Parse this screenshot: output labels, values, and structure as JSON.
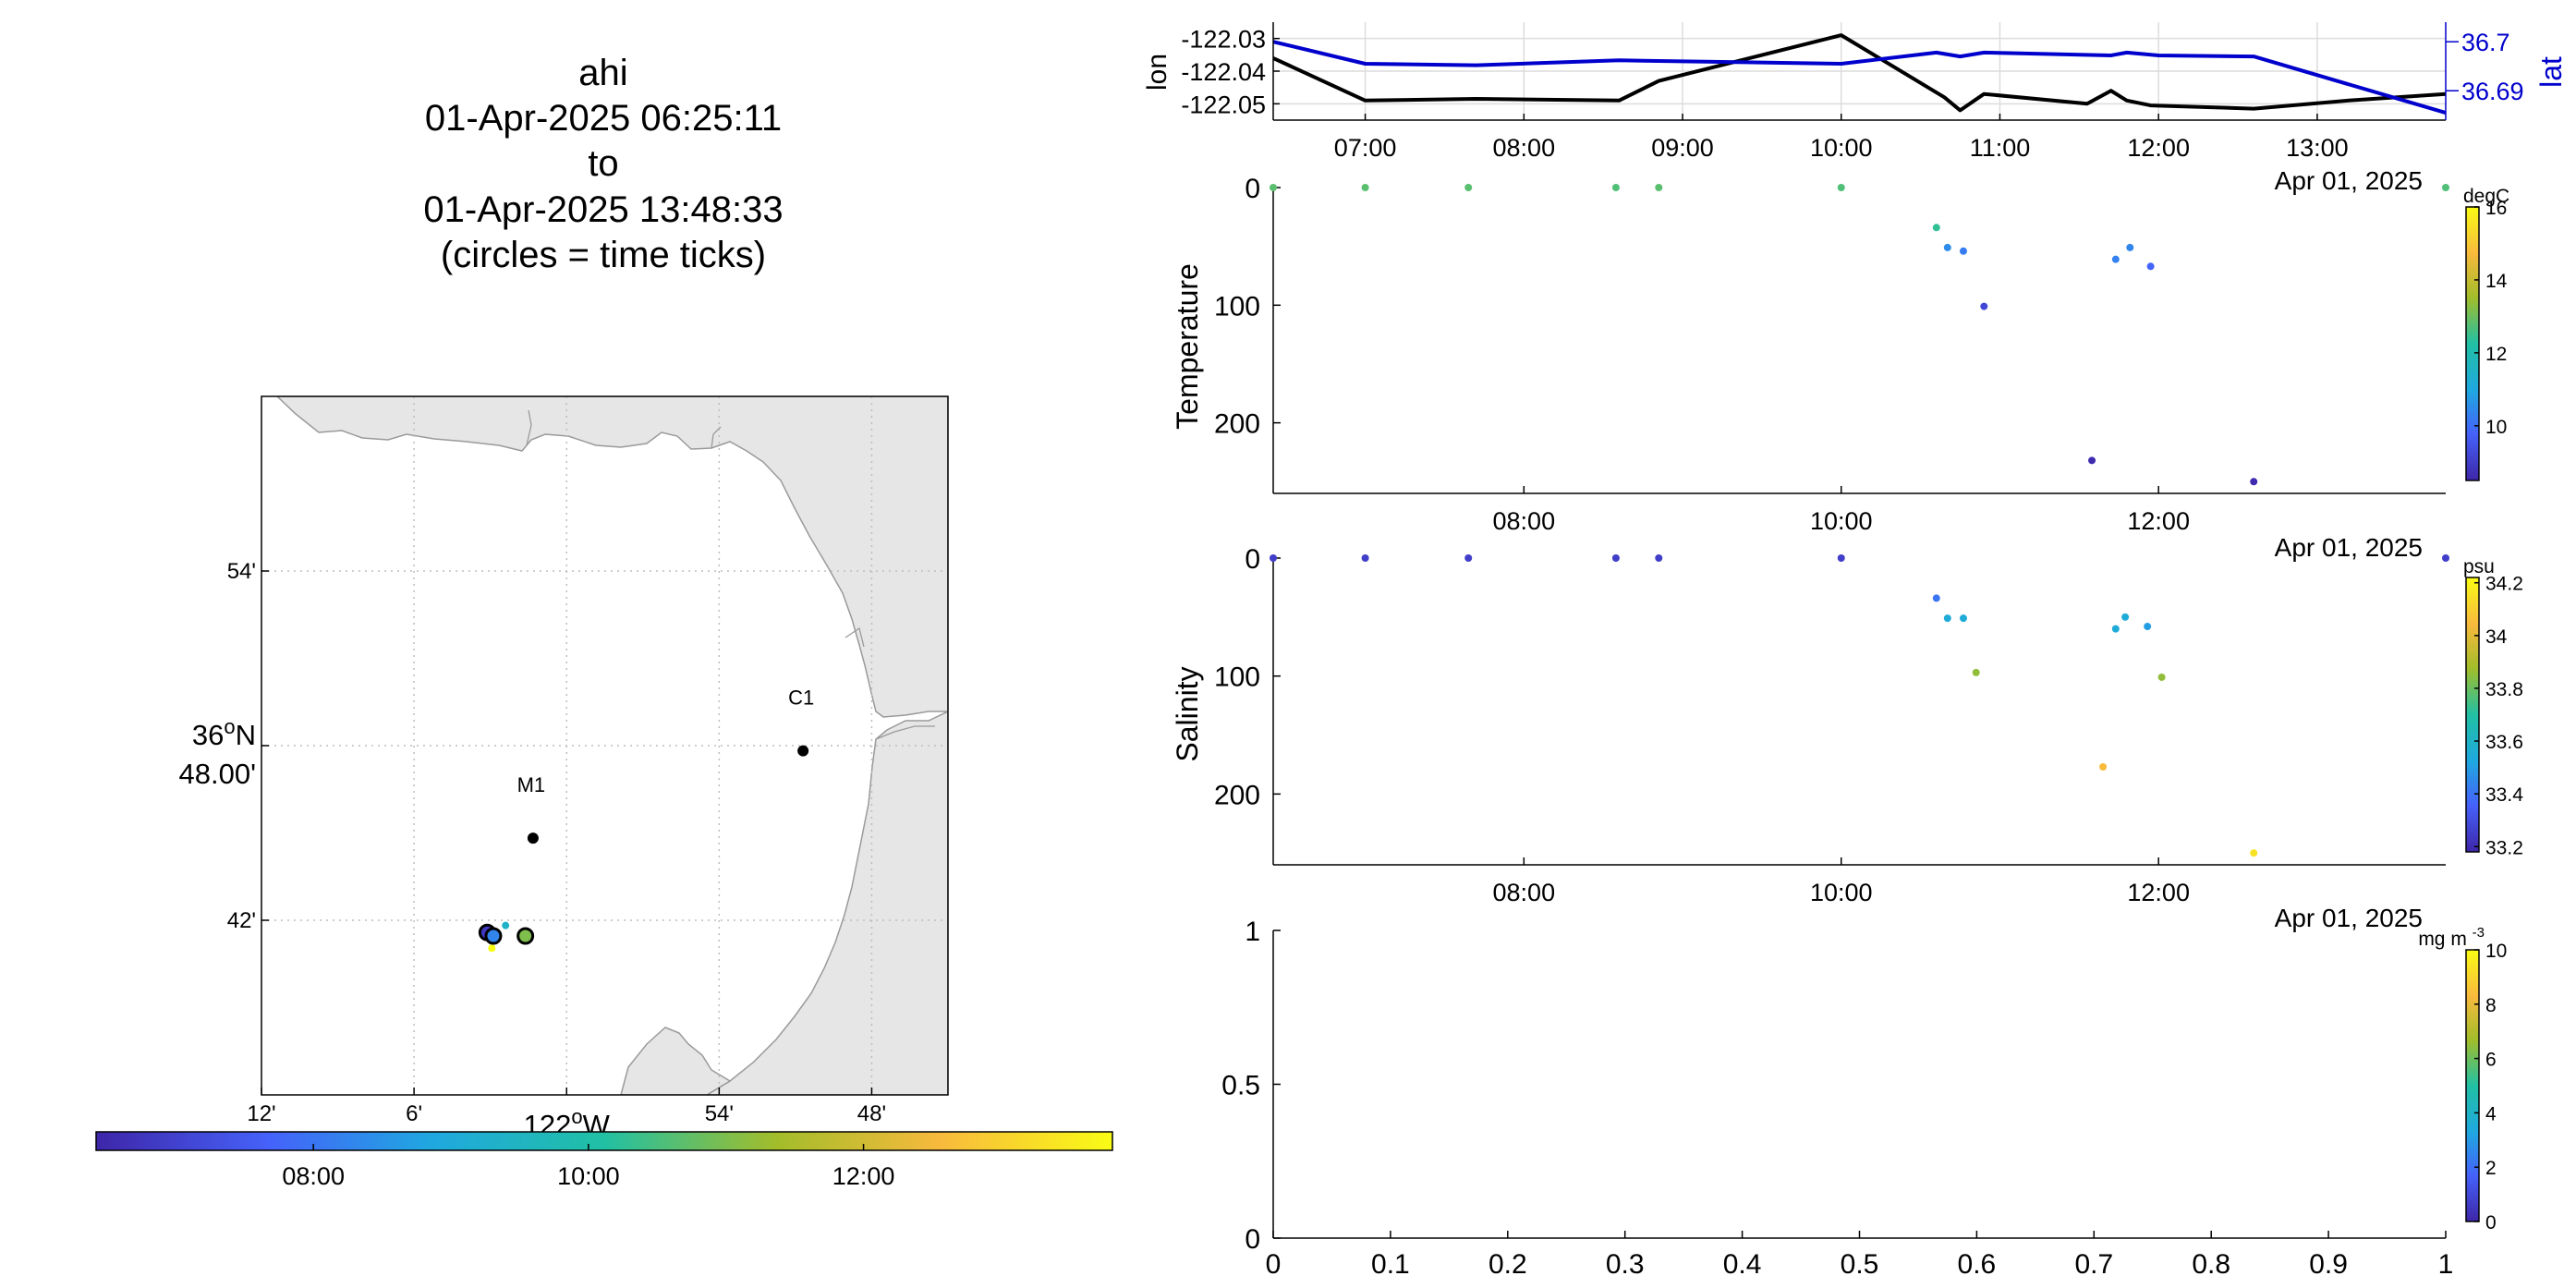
{
  "title": {
    "lines": [
      "ahi",
      "01-Apr-2025 06:25:11",
      "to",
      "01-Apr-2025 13:48:33",
      "(circles = time ticks)"
    ]
  },
  "map": {
    "lon_range": [
      -122.2,
      -121.75
    ],
    "lat_range": [
      36.6,
      37.0
    ],
    "x_tick_labels": [
      {
        "lon": -122.2,
        "label": "12'"
      },
      {
        "lon": -122.1,
        "label": "6'"
      },
      {
        "lon": -122.0,
        "label": "122",
        "suffix": "W"
      },
      {
        "lon": -121.9,
        "label": "54'"
      },
      {
        "lon": -121.8,
        "label": "48'"
      }
    ],
    "y_tick_labels": [
      {
        "lat": 36.9,
        "label": "54'"
      },
      {
        "lat": 36.8,
        "label": "36",
        "suffix": "N",
        "second_line": "48.00'"
      },
      {
        "lat": 36.7,
        "label": "42'"
      }
    ],
    "land_color": "#e6e6e6",
    "moorings": [
      {
        "name": "C1",
        "lon": -121.845,
        "lat": 36.797
      },
      {
        "name": "M1",
        "lon": -122.022,
        "lat": 36.747
      }
    ],
    "track_points": [
      {
        "lon": -122.052,
        "lat": 36.693,
        "t": 0.0
      },
      {
        "lon": -122.05,
        "lat": 36.691,
        "t": 0.15
      },
      {
        "lon": -122.049,
        "lat": 36.69,
        "t": 0.3
      },
      {
        "lon": -122.048,
        "lat": 36.692,
        "t": 0.45
      },
      {
        "lon": -122.04,
        "lat": 36.697,
        "t": 0.4
      },
      {
        "lon": -122.028,
        "lat": 36.692,
        "t": 0.55
      },
      {
        "lon": -122.026,
        "lat": 36.69,
        "t": 0.6
      },
      {
        "lon": -122.049,
        "lat": 36.684,
        "t": 1.0
      }
    ],
    "time_tick_circles": [
      {
        "lon": -122.052,
        "lat": 36.693,
        "t": 0.05
      },
      {
        "lon": -122.048,
        "lat": 36.691,
        "t": 0.25
      },
      {
        "lon": -122.027,
        "lat": 36.691,
        "t": 0.62
      }
    ]
  },
  "time_colorbar": {
    "colors": [
      "#3e26a8",
      "#4562fa",
      "#1fa8e0",
      "#21c0a4",
      "#a3bd2a",
      "#f8ba3d",
      "#f9fb15"
    ],
    "tick_labels": [
      {
        "hour": 8,
        "label": "08:00"
      },
      {
        "hour": 10,
        "label": "10:00"
      },
      {
        "hour": 12,
        "label": "12:00"
      }
    ],
    "time_range_hours": [
      6.42,
      13.81
    ]
  },
  "chart_data": [
    {
      "type": "line",
      "panel": "position",
      "ylabel": "lon",
      "ylabel_right": "lat",
      "x_range_hours": [
        6.42,
        13.81
      ],
      "x_tick_labels": [
        "07:00",
        "08:00",
        "09:00",
        "10:00",
        "11:00",
        "12:00",
        "13:00"
      ],
      "x_tick_hours": [
        7,
        8,
        9,
        10,
        11,
        12,
        13
      ],
      "date_label": "Apr 01, 2025",
      "y_left_range": [
        -122.055,
        -122.025
      ],
      "y_left_ticks": [
        "-122.03",
        "-122.04",
        "-122.05"
      ],
      "y_left_tick_values": [
        -122.03,
        -122.04,
        -122.05
      ],
      "y_right_range": [
        36.684,
        36.704
      ],
      "y_right_ticks": [
        "36.7",
        "36.69"
      ],
      "y_right_tick_values": [
        36.7,
        36.69
      ],
      "series": [
        {
          "name": "lon",
          "axis": "left",
          "color": "#000000",
          "x_hours": [
            6.42,
            7.0,
            7.7,
            8.6,
            8.85,
            10.0,
            10.65,
            10.75,
            10.9,
            11.55,
            11.7,
            11.8,
            11.95,
            12.6,
            13.2,
            13.81
          ],
          "y": [
            -122.036,
            -122.049,
            -122.0485,
            -122.049,
            -122.043,
            -122.029,
            -122.048,
            -122.052,
            -122.047,
            -122.05,
            -122.046,
            -122.049,
            -122.0505,
            -122.0515,
            -122.049,
            -122.047
          ]
        },
        {
          "name": "lat",
          "axis": "right",
          "color": "#0000cc",
          "x_hours": [
            6.42,
            7.0,
            7.7,
            8.6,
            10.0,
            10.6,
            10.75,
            10.9,
            11.7,
            11.8,
            12.0,
            12.6,
            13.81
          ],
          "y": [
            36.7,
            36.6955,
            36.6952,
            36.6962,
            36.6955,
            36.6978,
            36.697,
            36.6978,
            36.6972,
            36.6978,
            36.6972,
            36.697,
            36.6855
          ]
        }
      ]
    },
    {
      "type": "scatter",
      "panel": "temperature",
      "ylabel": "Temperature",
      "x_range_hours": [
        6.42,
        13.81
      ],
      "x_tick_labels": [
        "08:00",
        "10:00",
        "12:00"
      ],
      "x_tick_hours": [
        8,
        10,
        12
      ],
      "date_label": "Apr 01, 2025",
      "y_range": [
        0,
        260
      ],
      "y_reversed": true,
      "y_ticks": [
        0,
        100,
        200
      ],
      "colorbar": {
        "unit": "degC",
        "range": [
          8.5,
          16
        ],
        "ticks": [
          10,
          12,
          14,
          16
        ]
      },
      "points": [
        {
          "x": 6.42,
          "depth": 0,
          "value": 12.8
        },
        {
          "x": 7.0,
          "depth": 0,
          "value": 12.8
        },
        {
          "x": 7.65,
          "depth": 0,
          "value": 12.8
        },
        {
          "x": 8.58,
          "depth": 0,
          "value": 12.7
        },
        {
          "x": 8.85,
          "depth": 0,
          "value": 12.8
        },
        {
          "x": 10.0,
          "depth": 0,
          "value": 12.7
        },
        {
          "x": 10.6,
          "depth": 34,
          "value": 12.4
        },
        {
          "x": 10.67,
          "depth": 51,
          "value": 10.5
        },
        {
          "x": 10.77,
          "depth": 54,
          "value": 10.2
        },
        {
          "x": 10.9,
          "depth": 101,
          "value": 9.2
        },
        {
          "x": 11.58,
          "depth": 232,
          "value": 8.6
        },
        {
          "x": 11.73,
          "depth": 61,
          "value": 10.3
        },
        {
          "x": 11.82,
          "depth": 51,
          "value": 10.4
        },
        {
          "x": 11.95,
          "depth": 67,
          "value": 9.8
        },
        {
          "x": 12.6,
          "depth": 250,
          "value": 8.6
        },
        {
          "x": 13.81,
          "depth": 0,
          "value": 12.7
        }
      ]
    },
    {
      "type": "scatter",
      "panel": "salinity",
      "ylabel": "Salinity",
      "x_range_hours": [
        6.42,
        13.81
      ],
      "x_tick_labels": [
        "08:00",
        "10:00",
        "12:00"
      ],
      "x_tick_hours": [
        8,
        10,
        12
      ],
      "date_label": "Apr 01, 2025",
      "y_range": [
        0,
        260
      ],
      "y_reversed": true,
      "y_ticks": [
        0,
        100,
        200
      ],
      "colorbar": {
        "unit": "psu",
        "range": [
          33.18,
          34.22
        ],
        "ticks": [
          33.2,
          33.4,
          33.6,
          33.8,
          34,
          34.2
        ]
      },
      "points": [
        {
          "x": 6.42,
          "depth": 0,
          "value": 33.25
        },
        {
          "x": 7.0,
          "depth": 0,
          "value": 33.25
        },
        {
          "x": 7.65,
          "depth": 0,
          "value": 33.25
        },
        {
          "x": 8.58,
          "depth": 0,
          "value": 33.25
        },
        {
          "x": 8.85,
          "depth": 0,
          "value": 33.25
        },
        {
          "x": 10.0,
          "depth": 0,
          "value": 33.25
        },
        {
          "x": 10.6,
          "depth": 34,
          "value": 33.4
        },
        {
          "x": 10.67,
          "depth": 51,
          "value": 33.55
        },
        {
          "x": 10.77,
          "depth": 51,
          "value": 33.55
        },
        {
          "x": 10.85,
          "depth": 97,
          "value": 33.85
        },
        {
          "x": 11.65,
          "depth": 177,
          "value": 34.05
        },
        {
          "x": 11.73,
          "depth": 60,
          "value": 33.55
        },
        {
          "x": 11.79,
          "depth": 50,
          "value": 33.55
        },
        {
          "x": 11.93,
          "depth": 58,
          "value": 33.5
        },
        {
          "x": 12.02,
          "depth": 101,
          "value": 33.85
        },
        {
          "x": 12.6,
          "depth": 250,
          "value": 34.15
        },
        {
          "x": 13.81,
          "depth": 0,
          "value": 33.25
        }
      ]
    },
    {
      "type": "scatter",
      "panel": "empty",
      "x_range": [
        0,
        1
      ],
      "y_range": [
        0,
        1
      ],
      "x_ticks": [
        "0",
        "0.1",
        "0.2",
        "0.3",
        "0.4",
        "0.5",
        "0.6",
        "0.7",
        "0.8",
        "0.9",
        "1"
      ],
      "x_tick_values": [
        0,
        0.1,
        0.2,
        0.3,
        0.4,
        0.5,
        0.6,
        0.7,
        0.8,
        0.9,
        1
      ],
      "y_ticks": [
        "0",
        "0.5",
        "1"
      ],
      "y_tick_values": [
        0,
        0.5,
        1
      ],
      "colorbar": {
        "unit": "mg m",
        "unit_sup": "-3",
        "range": [
          0,
          10
        ],
        "ticks": [
          0,
          2,
          4,
          6,
          8,
          10
        ]
      },
      "points": []
    }
  ]
}
